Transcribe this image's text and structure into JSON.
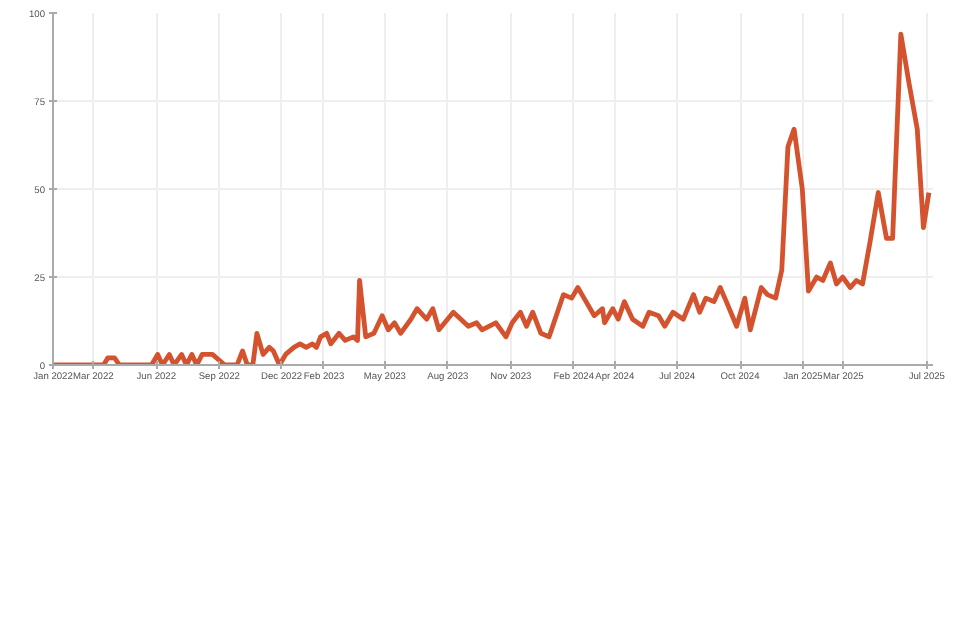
{
  "chart_data": {
    "type": "line",
    "x": [
      "2022-01-01",
      "2022-03-16",
      "2022-03-22",
      "2022-04-01",
      "2022-04-08",
      "2022-05-25",
      "2022-06-03",
      "2022-06-10",
      "2022-06-20",
      "2022-06-27",
      "2022-07-08",
      "2022-07-15",
      "2022-07-23",
      "2022-07-30",
      "2022-08-07",
      "2022-08-22",
      "2022-09-09",
      "2022-09-27",
      "2022-10-05",
      "2022-10-12",
      "2022-10-20",
      "2022-10-26",
      "2022-11-04",
      "2022-11-13",
      "2022-11-19",
      "2022-11-28",
      "2022-12-07",
      "2022-12-19",
      "2022-12-28",
      "2023-01-06",
      "2023-01-15",
      "2023-01-21",
      "2023-01-27",
      "2023-02-05",
      "2023-02-11",
      "2023-02-23",
      "2023-03-04",
      "2023-03-16",
      "2023-03-22",
      "2023-03-25",
      "2023-04-03",
      "2023-04-15",
      "2023-04-27",
      "2023-05-06",
      "2023-05-15",
      "2023-05-24",
      "2023-06-08",
      "2023-06-17",
      "2023-07-01",
      "2023-07-10",
      "2023-07-19",
      "2023-08-09",
      "2023-08-31",
      "2023-09-12",
      "2023-09-20",
      "2023-10-10",
      "2023-10-25",
      "2023-11-03",
      "2023-11-15",
      "2023-11-24",
      "2023-12-03",
      "2023-12-15",
      "2023-12-27",
      "2024-01-17",
      "2024-01-29",
      "2024-02-07",
      "2024-02-16",
      "2024-03-02",
      "2024-03-14",
      "2024-03-17",
      "2024-03-29",
      "2024-04-06",
      "2024-04-15",
      "2024-04-27",
      "2024-05-12",
      "2024-05-21",
      "2024-06-04",
      "2024-06-13",
      "2024-06-25",
      "2024-07-10",
      "2024-07-25",
      "2024-08-03",
      "2024-08-12",
      "2024-08-24",
      "2024-09-02",
      "2024-09-11",
      "2024-09-26",
      "2024-10-08",
      "2024-10-16",
      "2024-11-01",
      "2024-11-10",
      "2024-11-22",
      "2024-12-01",
      "2024-12-10",
      "2024-12-19",
      "2024-12-31",
      "2025-01-09",
      "2025-01-21",
      "2025-01-30",
      "2025-02-10",
      "2025-02-19",
      "2025-02-28",
      "2025-03-11",
      "2025-03-20",
      "2025-03-29",
      "2025-04-09",
      "2025-04-21",
      "2025-05-03",
      "2025-05-12",
      "2025-05-24",
      "2025-06-05",
      "2025-06-17",
      "2025-06-26",
      "2025-07-04"
    ],
    "series": [
      {
        "color": "#d4532e",
        "values": [
          0,
          0,
          2,
          2,
          0,
          0,
          3,
          0,
          3,
          0,
          3,
          0,
          3,
          0,
          3,
          3,
          0,
          0,
          4,
          0,
          0,
          9,
          3,
          5,
          4,
          0,
          3,
          5,
          6,
          5,
          6,
          5,
          8,
          9,
          6,
          9,
          7,
          8,
          7,
          24,
          8,
          9,
          14,
          10,
          12,
          9,
          13,
          16,
          13,
          16,
          10,
          15,
          11,
          12,
          10,
          12,
          8,
          12,
          15,
          11,
          15,
          9,
          8,
          20,
          19,
          22,
          19,
          14,
          16,
          12,
          16,
          13,
          18,
          13,
          11,
          15,
          14,
          11,
          15,
          13,
          20,
          15,
          19,
          18,
          22,
          18,
          11,
          19,
          10,
          22,
          20,
          19,
          27,
          62,
          67,
          50,
          21,
          25,
          24,
          29,
          23,
          25,
          22,
          24,
          23,
          35,
          49,
          36,
          36,
          94,
          80,
          67,
          39,
          49
        ]
      }
    ],
    "xlim": [
      "2022-01-01",
      "2025-07-10"
    ],
    "xticks": [
      {
        "value": "2022-01-01",
        "label": "Jan 2022"
      },
      {
        "value": "2022-03-01",
        "label": "Mar 2022"
      },
      {
        "value": "2022-06-01",
        "label": "Jun 2022"
      },
      {
        "value": "2022-09-01",
        "label": "Sep 2022"
      },
      {
        "value": "2022-12-01",
        "label": "Dec 2022"
      },
      {
        "value": "2023-02-01",
        "label": "Feb 2023"
      },
      {
        "value": "2023-05-01",
        "label": "May 2023"
      },
      {
        "value": "2023-08-01",
        "label": "Aug 2023"
      },
      {
        "value": "2023-11-01",
        "label": "Nov 2023"
      },
      {
        "value": "2024-02-01",
        "label": "Feb 2024"
      },
      {
        "value": "2024-04-01",
        "label": "Apr 2024"
      },
      {
        "value": "2024-07-01",
        "label": "Jul 2024"
      },
      {
        "value": "2024-10-01",
        "label": "Oct 2024"
      },
      {
        "value": "2025-01-01",
        "label": "Jan 2025"
      },
      {
        "value": "2025-03-01",
        "label": "Mar 2025"
      },
      {
        "value": "2025-07-01",
        "label": "Jul 2025"
      }
    ],
    "ylim": [
      0,
      100
    ],
    "yticks": [
      0,
      25,
      50,
      75,
      100
    ],
    "grid": true,
    "marker": "none",
    "line_style": "solid"
  }
}
